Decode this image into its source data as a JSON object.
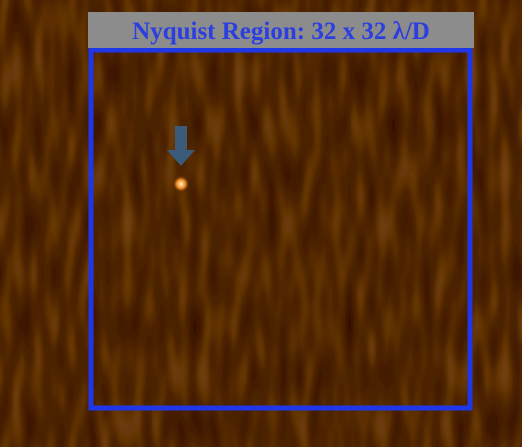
{
  "title": "Nyquist Region: 32 x 32 λ/D"
}
